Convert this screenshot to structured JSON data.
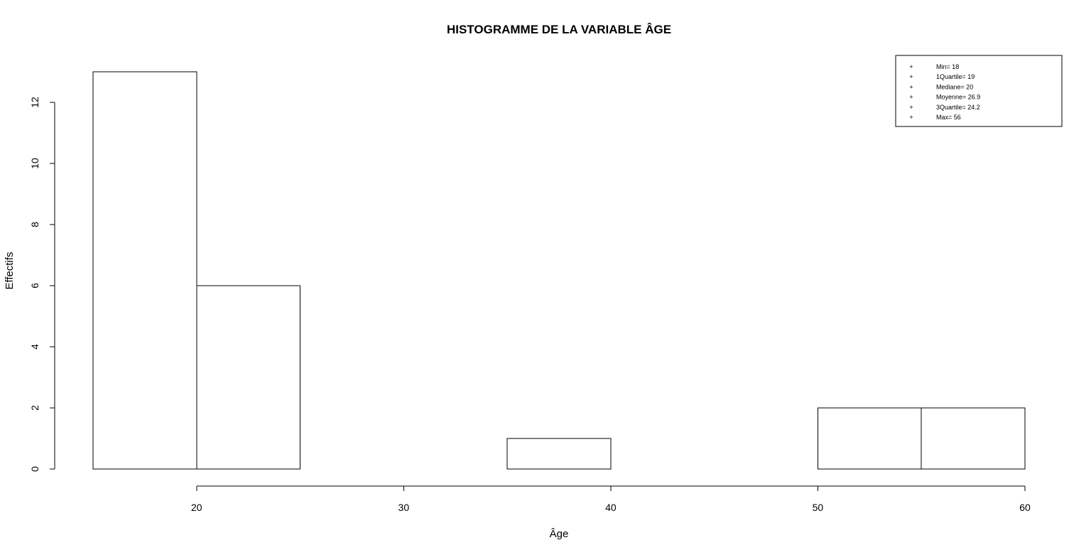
{
  "chart_data": {
    "type": "bar",
    "title": "HISTOGRAMME DE LA VARIABLE ÂGE",
    "xlabel": "Âge",
    "ylabel": "Effectifs",
    "bins": [
      {
        "start": 15,
        "end": 20,
        "count": 13
      },
      {
        "start": 20,
        "end": 25,
        "count": 6
      },
      {
        "start": 25,
        "end": 30,
        "count": 0
      },
      {
        "start": 30,
        "end": 35,
        "count": 0
      },
      {
        "start": 35,
        "end": 40,
        "count": 1
      },
      {
        "start": 40,
        "end": 45,
        "count": 0
      },
      {
        "start": 45,
        "end": 50,
        "count": 0
      },
      {
        "start": 50,
        "end": 55,
        "count": 2
      },
      {
        "start": 55,
        "end": 60,
        "count": 2
      }
    ],
    "x_ticks": [
      20,
      30,
      40,
      50,
      60
    ],
    "y_ticks": [
      0,
      2,
      4,
      6,
      8,
      10,
      12
    ],
    "xlim": [
      15,
      60
    ],
    "ylim": [
      0,
      13
    ],
    "bar_fill": "#ffffff",
    "bar_stroke": "#000000",
    "grid": false,
    "legend_position": "top-right",
    "legend": {
      "symbol": "+",
      "entries": [
        "Min= 18",
        "1Quartile= 19",
        "Mediane= 20",
        "Moyenne= 26.9",
        "3Quartile= 24.2",
        "Max= 56"
      ]
    }
  }
}
